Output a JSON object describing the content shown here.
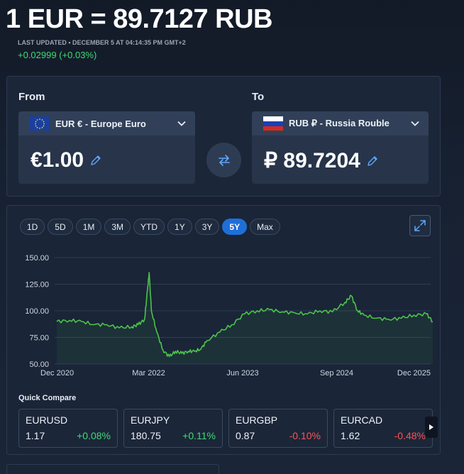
{
  "header": {
    "rate_title": "1 EUR = 89.7127 RUB",
    "last_updated": "LAST UPDATED • DECEMBER 5 AT 04:14:35 PM GMT+2",
    "change": "+0.02999 (+0.03%)"
  },
  "converter": {
    "from_label": "From",
    "to_label": "To",
    "from_currency": "EUR € - Europe Euro",
    "to_currency": "RUB ₽ - Russia Rouble",
    "from_amount": "€1.00",
    "to_amount": "₽ 89.7204",
    "icons": {
      "from_flag": "eu-flag-icon",
      "to_flag": "russia-flag-icon",
      "swap": "swap-arrows-icon",
      "edit": "pencil-icon",
      "dropdown": "chevron-down-icon"
    }
  },
  "ranges": {
    "items": [
      "1D",
      "5D",
      "1M",
      "3M",
      "YTD",
      "1Y",
      "3Y",
      "5Y",
      "Max"
    ],
    "active": "5Y"
  },
  "chart_data": {
    "type": "area",
    "title": "",
    "xlabel": "",
    "ylabel": "",
    "x_ticks": [
      "Dec 2020",
      "Mar 2022",
      "Jun 2023",
      "Sep 2024",
      "Dec 2025"
    ],
    "y_ticks": [
      "150.00",
      "125.00",
      "100.00",
      "75.00",
      "50.00"
    ],
    "ylim": [
      50,
      150
    ],
    "xlim": [
      "2020-12-05",
      "2025-12-05"
    ],
    "grid": true,
    "series": [
      {
        "color": "#4cc34c",
        "x": [
          "2020-12",
          "2021-02",
          "2021-04",
          "2021-06",
          "2021-08",
          "2021-10",
          "2021-12",
          "2022-01",
          "2022-02",
          "2022-03-01",
          "2022-03-09",
          "2022-03-20",
          "2022-04",
          "2022-05",
          "2022-06",
          "2022-07",
          "2022-08",
          "2022-09",
          "2022-10",
          "2022-11",
          "2022-12",
          "2023-02",
          "2023-04",
          "2023-06",
          "2023-08",
          "2023-10",
          "2023-12",
          "2024-02",
          "2024-04",
          "2024-06",
          "2024-08",
          "2024-10",
          "2024-11",
          "2024-12",
          "2025-01",
          "2025-03",
          "2025-05",
          "2025-07",
          "2025-09",
          "2025-11",
          "2025-12"
        ],
        "y": [
          90,
          91,
          90,
          87,
          87,
          84,
          85,
          87,
          92,
          120,
          136,
          100,
          80,
          63,
          57,
          62,
          60,
          62,
          62,
          64,
          72,
          80,
          87,
          97,
          100,
          101,
          99,
          98,
          97,
          100,
          99,
          108,
          114,
          100,
          96,
          93,
          92,
          93,
          96,
          97,
          90
        ]
      }
    ]
  },
  "quick_compare": {
    "title": "Quick Compare",
    "items": [
      {
        "pair": "EURUSD",
        "rate": "1.17",
        "change": "+0.08%",
        "direction": "up"
      },
      {
        "pair": "EURJPY",
        "rate": "180.75",
        "change": "+0.11%",
        "direction": "up"
      },
      {
        "pair": "EURGBP",
        "rate": "0.87",
        "change": "-0.10%",
        "direction": "down"
      },
      {
        "pair": "EURCAD",
        "rate": "1.62",
        "change": "-0.48%",
        "direction": "down"
      }
    ],
    "next_icon": "play-right-icon"
  },
  "colors": {
    "accent": "#1e6fd9",
    "positive": "#3ddc73",
    "negative": "#ff5252",
    "line": "#4cc34c"
  }
}
